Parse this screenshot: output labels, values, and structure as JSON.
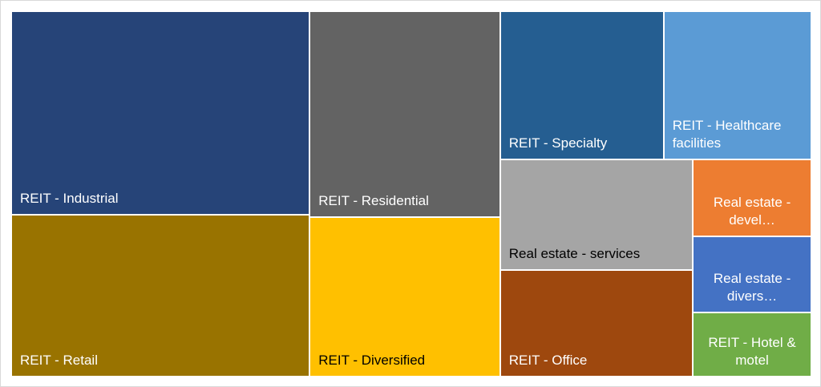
{
  "chart_data": {
    "type": "treemap",
    "categories": [
      "REIT - Industrial",
      "REIT - Retail",
      "REIT - Residential",
      "REIT - Diversified",
      "REIT - Specialty",
      "REIT - Healthcare facilities",
      "Real estate - services",
      "REIT - Office",
      "Real estate - devel…",
      "Real estate - divers…",
      "REIT - Hotel & motel"
    ],
    "values": [
      20.8,
      16.5,
      13.4,
      10.4,
      8.3,
      7.5,
      7.3,
      7.0,
      3.1,
      3.1,
      2.6
    ],
    "colors": [
      "#264478",
      "#997300",
      "#636363",
      "#ffc000",
      "#255e91",
      "#5b9bd5",
      "#a5a5a5",
      "#9e480e",
      "#ed7d31",
      "#4472c4",
      "#70ad47"
    ],
    "label_colors": [
      "#ffffff",
      "#ffffff",
      "#ffffff",
      "#000000",
      "#ffffff",
      "#ffffff",
      "#000000",
      "#ffffff",
      "#ffffff",
      "#ffffff",
      "#ffffff"
    ]
  }
}
